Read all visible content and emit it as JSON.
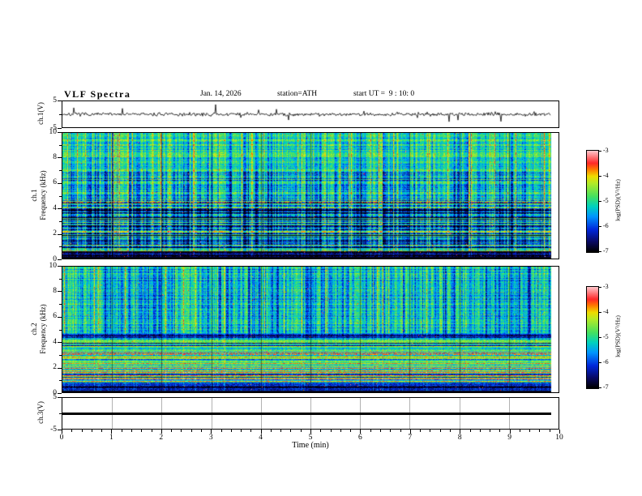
{
  "header": {
    "title": "VLF Spectra",
    "date": "Jan. 14, 2026",
    "station": "station=ATH",
    "start_ut": "start UT =  9 : 10: 0"
  },
  "axes": {
    "time_label": "Time (min)",
    "time_ticks": [
      0,
      1,
      2,
      3,
      4,
      5,
      6,
      7,
      8,
      9,
      10
    ],
    "minor_tick_step": 0.2,
    "time_range_min": [
      0,
      10
    ]
  },
  "panels": [
    {
      "id": "ch1_wave",
      "ylabel": "ch.1(V)",
      "yticks": [
        5,
        -5
      ],
      "ylim": [
        -5,
        5
      ]
    },
    {
      "id": "ch1_spec",
      "ylabel_line1": "ch.1",
      "ylabel_line2": "Frequency (kHz)",
      "yticks": [
        10,
        8,
        6,
        4,
        2,
        0
      ],
      "ylim": [
        0,
        10
      ]
    },
    {
      "id": "ch2_spec",
      "ylabel_line1": "ch.2",
      "ylabel_line2": "Frequency (kHz)",
      "yticks": [
        10,
        8,
        6,
        4,
        2,
        0
      ],
      "ylim": [
        0,
        10
      ]
    },
    {
      "id": "ch3_wave",
      "ylabel": "ch.3(V)",
      "yticks": [
        5,
        -5
      ],
      "ylim": [
        -5,
        5
      ]
    }
  ],
  "colorbar": {
    "label": "log(PSD)(V²/Hz)",
    "ticks": [
      -3,
      -4,
      -5,
      -6,
      -7
    ],
    "range": [
      -7,
      -3
    ],
    "colormap": [
      [
        0.0,
        "#000000"
      ],
      [
        0.1,
        "#0a0a64"
      ],
      [
        0.22,
        "#0028dc"
      ],
      [
        0.35,
        "#0096ff"
      ],
      [
        0.45,
        "#00d2be"
      ],
      [
        0.55,
        "#46e15f"
      ],
      [
        0.68,
        "#b4eb28"
      ],
      [
        0.75,
        "#f0dc00"
      ],
      [
        0.82,
        "#ff7800"
      ],
      [
        0.88,
        "#ff2828"
      ],
      [
        1.0,
        "#ffc3c8"
      ]
    ]
  },
  "chart_data": [
    {
      "type": "line",
      "panel": "ch.1(V)",
      "description": "broadband noise around 0 V with frequent impulsive spikes up and down",
      "ylim": [
        -5,
        5
      ],
      "baseline": 0,
      "noise_sigma": 0.32,
      "spike_probability": 0.045,
      "spike_max_v": 4.6,
      "down_bias": 0.55,
      "duration_min": 9.85,
      "seed": 7
    },
    {
      "type": "heatmap",
      "panel": "ch.1 VLF spectrogram",
      "xlim_min": [
        0,
        10
      ],
      "ylim_khz": [
        0,
        10
      ],
      "value_log_psd": [
        -7,
        -3
      ],
      "duration_min": 9.85,
      "seed": 11,
      "texture": {
        "gamma": 2.0,
        "extra_dark_col_p": 0.18,
        "bright_col_p": 0.14,
        "speckle": 0.09,
        "bottom_black_rows": 2,
        "bands": [
          {
            "f_khz": [
              7,
              10
            ],
            "base": 0.6,
            "streak": 0.34,
            "row_var": 0.1,
            "red_p": 0.004
          },
          {
            "f_khz": [
              4.5,
              7
            ],
            "base": 0.56,
            "streak": 0.5,
            "row_var": 0.16,
            "red_p": 0.003
          },
          {
            "f_khz": [
              1.1,
              4.5
            ],
            "base": 0.52,
            "streak": 0.5,
            "row_var": 0.34,
            "red_p": 0.005,
            "dark_row_p": 0.14,
            "red_row_p": 0.05
          },
          {
            "f_khz": [
              0.55,
              1.1
            ],
            "base": 0.4,
            "streak": 0.28,
            "row_var": 0.4,
            "red_p": 0.012,
            "red_row_p": 0.08
          },
          {
            "f_khz": [
              0,
              0.55
            ],
            "base": 0.12,
            "streak": 0.1,
            "row_var": 0.12,
            "red_p": 0.004
          }
        ]
      }
    },
    {
      "type": "heatmap",
      "panel": "ch.2 VLF spectrogram",
      "xlim_min": [
        0,
        10
      ],
      "ylim_khz": [
        0,
        10
      ],
      "value_log_psd": [
        -7,
        -3
      ],
      "duration_min": 9.85,
      "seed": 29,
      "texture": {
        "gamma": 2.0,
        "extra_dark_col_p": 0.16,
        "bright_col_p": 0.12,
        "speckle": 0.09,
        "bottom_black_rows": 2,
        "bands": [
          {
            "f_khz": [
              4.7,
              10
            ],
            "base": 0.58,
            "streak": 0.46,
            "row_var": 0.1,
            "red_p": 0.003
          },
          {
            "f_khz": [
              4.2,
              4.7
            ],
            "base": 0.3,
            "streak": 0.18,
            "row_var": 0.2,
            "red_p": 0.004
          },
          {
            "f_khz": [
              2.0,
              4.2
            ],
            "base": 0.62,
            "streak": 0.1,
            "row_var": 0.22,
            "red_p": 0.004,
            "dark_row_p": 0.08,
            "red_row_p": 0.07
          },
          {
            "f_khz": [
              0.6,
              2.0
            ],
            "base": 0.55,
            "streak": 0.08,
            "row_var": 0.36,
            "red_p": 0.006,
            "dark_row_p": 0.12,
            "red_row_p": 0.1
          },
          {
            "f_khz": [
              0,
              0.6
            ],
            "base": 0.14,
            "streak": 0.05,
            "row_var": 0.15,
            "red_p": 0.004
          }
        ]
      }
    },
    {
      "type": "line",
      "panel": "ch.3(V)",
      "description": "constant 0 V flat line (no signal)",
      "ylim": [
        -5,
        5
      ],
      "constant_value": 0,
      "duration_min": 9.85
    }
  ]
}
